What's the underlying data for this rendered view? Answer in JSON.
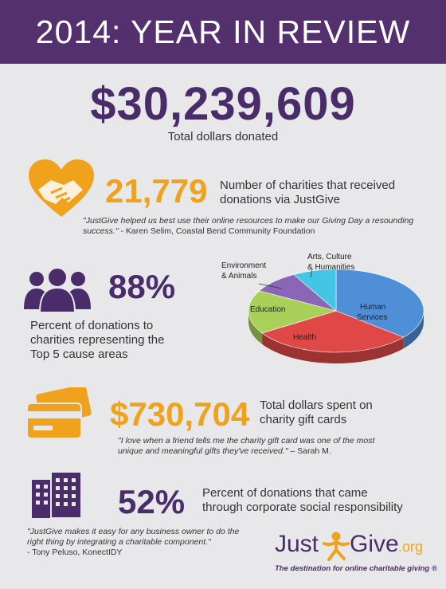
{
  "header": {
    "title": "2014: YEAR IN REVIEW"
  },
  "total": {
    "value": "$30,239,609",
    "label": "Total dollars donated"
  },
  "charities": {
    "value": "21,779",
    "label_line1": "Number of charities that received",
    "label_line2": "donations via JustGive",
    "quote_line1": "\"JustGive helped us best use their online resources to make our Giving Day a resounding",
    "quote_line2_text": "success.\"",
    "quote_line2_attr": " - Karen Selim, Coastal Bend Community Foundation"
  },
  "causes": {
    "value": "88%",
    "label_line1": "Percent of donations to",
    "label_line2": "charities representing the",
    "label_line3": "Top 5 cause areas"
  },
  "chart_data": {
    "type": "pie",
    "style": "3d",
    "slices": [
      {
        "label": "Human Services",
        "value": 36,
        "color": "#4f8fd8"
      },
      {
        "label": "Health",
        "value": 30,
        "color": "#e04848"
      },
      {
        "label": "Education",
        "value": 17,
        "color": "#a9d15a"
      },
      {
        "label": "Environment & Animals",
        "value": 9,
        "color": "#8a66b6"
      },
      {
        "label": "Arts, Culture & Humanities",
        "value": 8,
        "color": "#42c6e4"
      }
    ],
    "labels": {
      "human_services_1": "Human",
      "human_services_2": "Services",
      "health": "Health",
      "education": "Education",
      "environment_1": "Environment",
      "environment_2": "& Animals",
      "arts_1": "Arts, Culture",
      "arts_2": "& Humanities"
    }
  },
  "gift_cards": {
    "value": "$730,704",
    "label_line1": "Total dollars spent on",
    "label_line2": "charity gift cards",
    "quote_line1": "\"I love when a friend tells me the charity gift card was one of the most",
    "quote_line2_text": "unique and meaningful gifts they've received.\"",
    "quote_line2_attr": " – Sarah M."
  },
  "corporate": {
    "value": "52%",
    "label_line1": "Percent of donations that came",
    "label_line2": "through corporate social responsibility",
    "quote_line1": "\"JustGive makes it easy for any business owner to do the",
    "quote_line2": "right thing by integrating a charitable component.\"",
    "quote_attr": "- Tony Peluso, KonectIDY"
  },
  "logo": {
    "just": "Just",
    "give": "Give",
    "org": ".org",
    "tagline": "The destination for online charitable giving ®"
  },
  "colors": {
    "purple": "#55306f",
    "orange": "#f0a21c",
    "background": "#e8e8ea"
  },
  "icons": [
    "heart-hands-icon",
    "people-group-icon",
    "gift-card-icon",
    "office-building-icon",
    "person-logo-icon"
  ]
}
